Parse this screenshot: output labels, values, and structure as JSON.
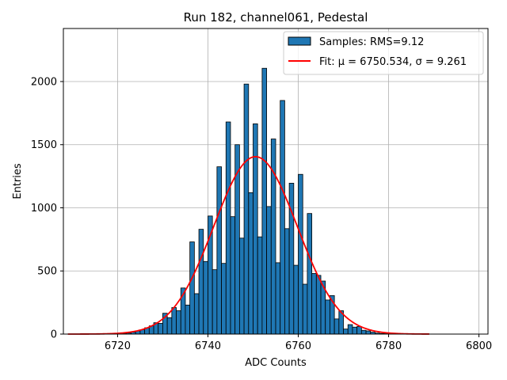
{
  "chart_data": {
    "type": "bar",
    "title": "Run 182, channel061, Pedestal",
    "xlabel": "ADC Counts",
    "ylabel": "Entries",
    "xlim": [
      6708,
      6802
    ],
    "ylim": [
      0,
      2420
    ],
    "xticks": [
      6720,
      6740,
      6760,
      6780,
      6800
    ],
    "yticks": [
      0,
      500,
      1000,
      1500,
      2000
    ],
    "grid": true,
    "legend_position": "top-right",
    "bar_color": "#1f77b4",
    "fit_color": "#ff0000",
    "histogram": {
      "name": "Samples: RMS=9.12",
      "bin_width": 1,
      "bin_start": [
        6720,
        6721,
        6722,
        6723,
        6724,
        6725,
        6726,
        6727,
        6728,
        6729,
        6730,
        6731,
        6732,
        6733,
        6734,
        6735,
        6736,
        6737,
        6738,
        6739,
        6740,
        6741,
        6742,
        6743,
        6744,
        6745,
        6746,
        6747,
        6748,
        6749,
        6750,
        6751,
        6752,
        6753,
        6754,
        6755,
        6756,
        6757,
        6758,
        6759,
        6760,
        6761,
        6762,
        6763,
        6764,
        6765,
        6766,
        6767,
        6768,
        6769,
        6770,
        6771,
        6772,
        6773,
        6774,
        6775,
        6776,
        6777,
        6778,
        6779,
        6780
      ],
      "counts": [
        5,
        6,
        8,
        15,
        25,
        35,
        50,
        65,
        90,
        85,
        165,
        130,
        210,
        185,
        365,
        230,
        730,
        320,
        830,
        575,
        935,
        510,
        1325,
        560,
        1680,
        930,
        1500,
        760,
        1980,
        1120,
        1665,
        770,
        2105,
        1010,
        1545,
        565,
        1850,
        835,
        1195,
        545,
        1265,
        395,
        955,
        480,
        465,
        420,
        270,
        305,
        120,
        185,
        40,
        75,
        55,
        60,
        30,
        25,
        15,
        8,
        5,
        3,
        2
      ]
    },
    "fit": {
      "name": "Fit: μ = 6750.534, σ = 9.261",
      "mu": 6750.534,
      "sigma": 9.261,
      "amplitude": 1405,
      "x_range": [
        6709,
        6789
      ]
    }
  }
}
